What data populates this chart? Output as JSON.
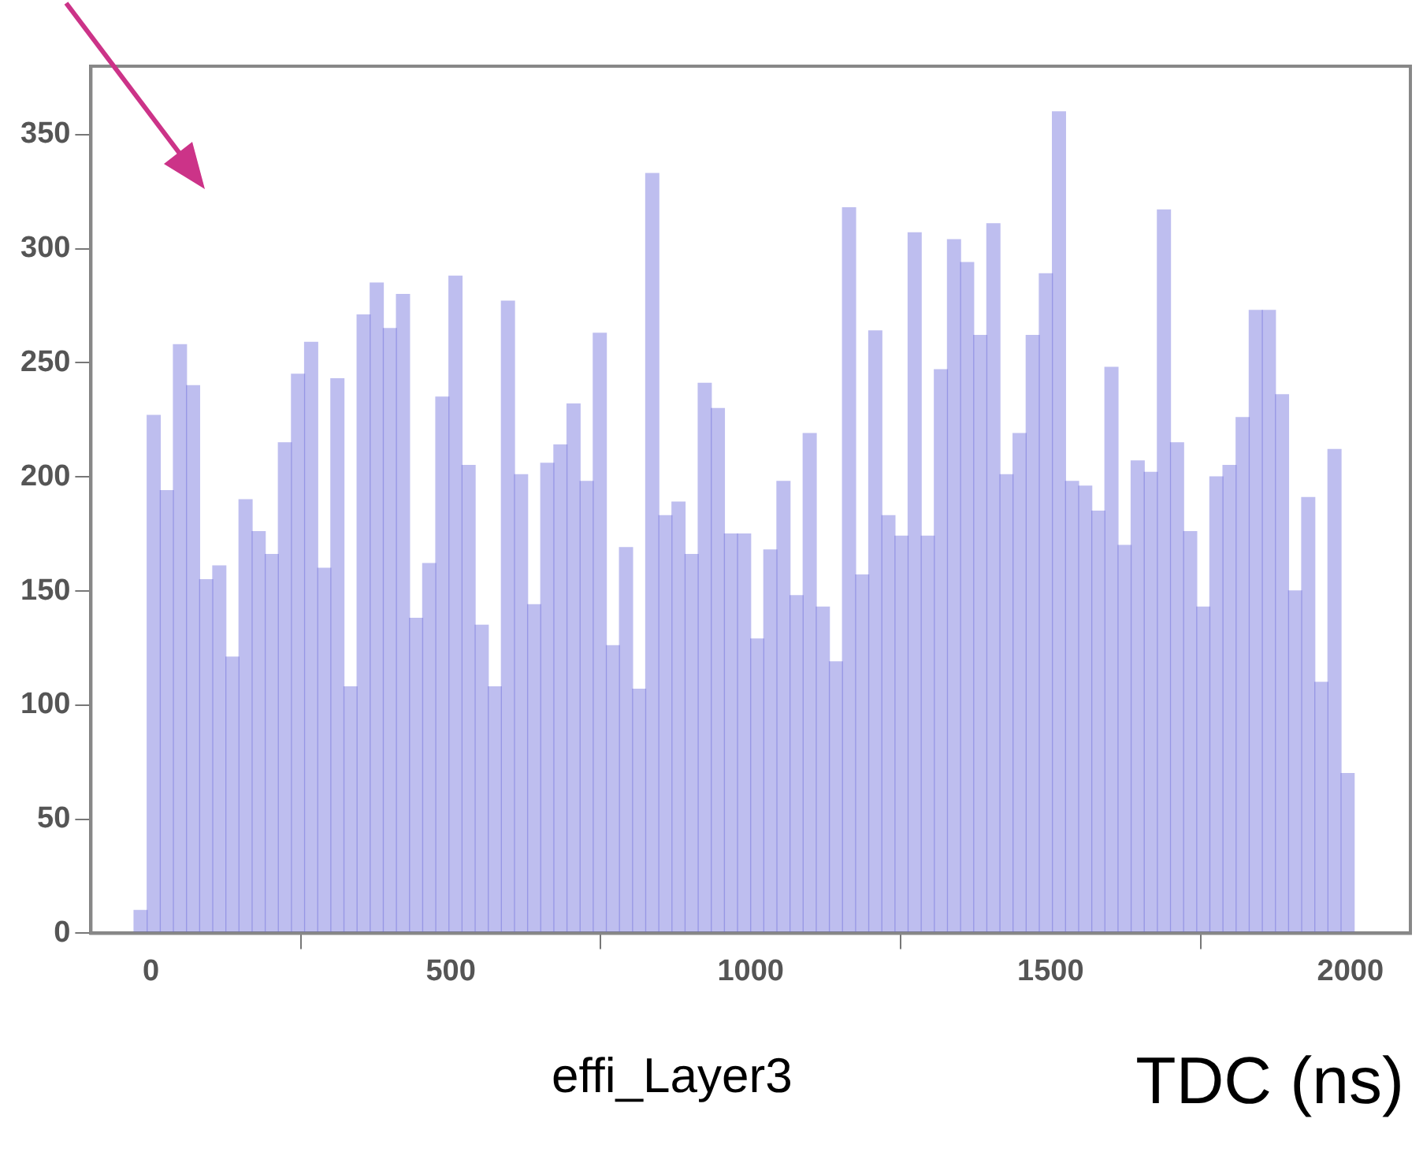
{
  "chart_data": {
    "type": "histogram",
    "xlabel": "TDC (ns)",
    "annotations": [
      "effi_Layer3"
    ],
    "bins": [
      -28.125,
      -6.25,
      15.625,
      37.5,
      59.375,
      81.25,
      103.125,
      125,
      146.875,
      168.75,
      190.625,
      212.5,
      234.375,
      256.25,
      278.125,
      300,
      321.875,
      343.75,
      365.625,
      387.5,
      409.375,
      431.25,
      453.125,
      475,
      496.875,
      518.75,
      540.625,
      562.5,
      584.375,
      606.25,
      628.125,
      650,
      671.875,
      693.75,
      715.625,
      737.5,
      759.375,
      781.25,
      803.125,
      825,
      846.875,
      868.75,
      890.625,
      912.5,
      934.375,
      956.25,
      978.125,
      1000,
      1021.875,
      1043.75,
      1065.625,
      1087.5,
      1109.375,
      1131.25,
      1153.125,
      1175,
      1196.875,
      1218.75,
      1240.625,
      1262.5,
      1284.375,
      1306.25,
      1328.125,
      1350,
      1371.875,
      1393.75,
      1415.625,
      1437.5,
      1459.375,
      1481.25,
      1503.125,
      1525,
      1546.875,
      1568.75,
      1590.625,
      1612.5,
      1634.375,
      1656.25,
      1678.125,
      1700,
      1721.875,
      1743.75,
      1765.625,
      1787.5,
      1809.375,
      1831.25,
      1853.125,
      1875,
      1896.875,
      1918.75,
      1940.625,
      1962.5,
      1984.375,
      2006.25
    ],
    "values": [
      10,
      227,
      194,
      258,
      240,
      155,
      161,
      121,
      190,
      176,
      166,
      215,
      245,
      259,
      160,
      243,
      108,
      271,
      285,
      265,
      280,
      138,
      162,
      235,
      288,
      205,
      135,
      108,
      277,
      201,
      144,
      206,
      214,
      232,
      198,
      263,
      126,
      169,
      107,
      333,
      183,
      189,
      166,
      241,
      230,
      175,
      175,
      129,
      168,
      198,
      148,
      219,
      143,
      119,
      318,
      157,
      264,
      183,
      174,
      307,
      174,
      247,
      304,
      294,
      262,
      311,
      201,
      219,
      262,
      289,
      360,
      198,
      196,
      185,
      248,
      170,
      207,
      202,
      317,
      215,
      176,
      143,
      200,
      205,
      226,
      273,
      273,
      236,
      150,
      191,
      110,
      212,
      70
    ],
    "color": "#5c5cd6",
    "xlim": [
      -100,
      2100
    ],
    "xticks": [
      0,
      500,
      1000,
      1500,
      2000
    ],
    "ylim": [
      0,
      380
    ],
    "yticks": [
      0,
      50,
      100,
      150,
      200,
      250,
      300,
      350
    ]
  }
}
